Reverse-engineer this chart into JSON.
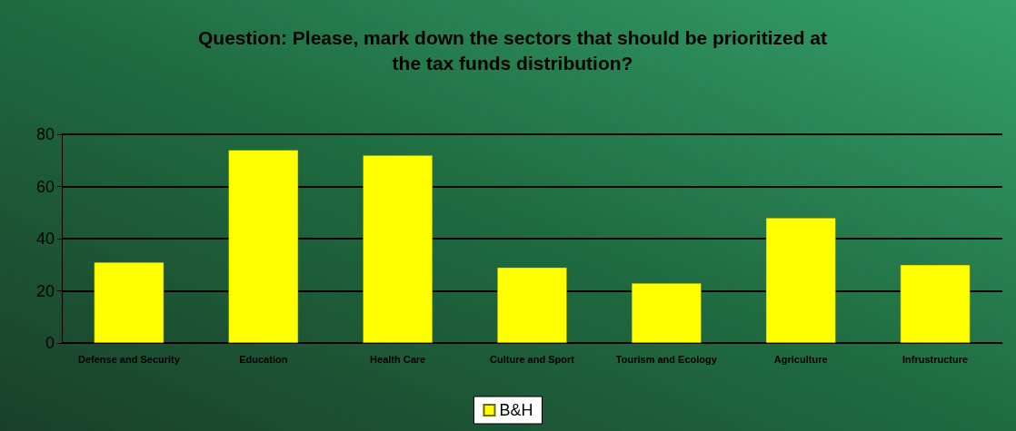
{
  "chart_data": {
    "type": "bar",
    "title": "Question: Please, mark down the sectors that should be prioritized at\nthe tax funds distribution?",
    "categories": [
      "Defense and Security",
      "Education",
      "Health Care",
      "Culture and Sport",
      "Tourism and Ecology",
      "Agriculture",
      "Infrustructure"
    ],
    "series": [
      {
        "name": "B&H",
        "color": "#ffff00",
        "values": [
          31,
          74,
          72,
          29,
          23,
          48,
          30
        ]
      }
    ],
    "ylim": [
      0,
      80
    ],
    "yticks": [
      0,
      20,
      40,
      60,
      80
    ],
    "grid": "y",
    "legend": "bottom"
  }
}
